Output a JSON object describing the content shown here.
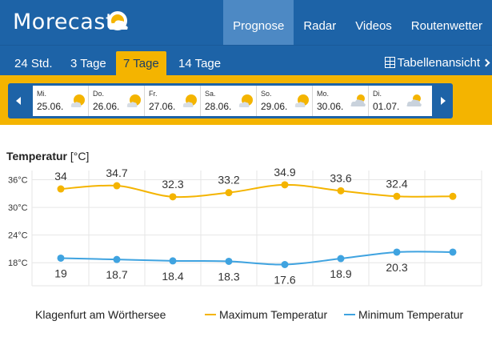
{
  "header": {
    "logo_text": "Morecast",
    "nav": [
      {
        "label": "Prognose",
        "active": true
      },
      {
        "label": "Radar",
        "active": false
      },
      {
        "label": "Videos",
        "active": false
      },
      {
        "label": "Routenwetter",
        "active": false
      }
    ]
  },
  "tabs": [
    {
      "label": "24 Std.",
      "active": false
    },
    {
      "label": "3 Tage",
      "active": false
    },
    {
      "label": "7 Tage",
      "active": true
    },
    {
      "label": "14 Tage",
      "active": false
    }
  ],
  "table_view_label": "Tabellenansicht",
  "days": [
    {
      "name": "Mi.",
      "date": "25.06.",
      "icon": "sun-cloud-icon"
    },
    {
      "name": "Do.",
      "date": "26.06.",
      "icon": "sun-cloud-icon"
    },
    {
      "name": "Fr.",
      "date": "27.06.",
      "icon": "sun-cloud-icon"
    },
    {
      "name": "Sa.",
      "date": "28.06.",
      "icon": "sun-cloud-icon"
    },
    {
      "name": "So.",
      "date": "29.06.",
      "icon": "sun-cloud-icon"
    },
    {
      "name": "Mo.",
      "date": "30.06.",
      "icon": "cloud-sun-icon"
    },
    {
      "name": "Di.",
      "date": "01.07.",
      "icon": "cloud-sun-icon"
    }
  ],
  "chart_title": "Temperatur",
  "chart_unit": "[°C]",
  "chart_data": {
    "type": "line",
    "title": "Temperatur [°C]",
    "y_ticks": [
      "36°C",
      "30°C",
      "24°C",
      "18°C"
    ],
    "y_tick_values": [
      36,
      30,
      24,
      18
    ],
    "ylim": [
      13,
      38
    ],
    "x": [
      0,
      1,
      2,
      3,
      4,
      5,
      6,
      7
    ],
    "series": [
      {
        "name": "Maximum Temperatur",
        "color": "#f4b400",
        "values": [
          34,
          34.7,
          32.3,
          33.2,
          34.9,
          33.6,
          32.4,
          32.4
        ],
        "labels": [
          "34",
          "34.7",
          "32.3",
          "33.2",
          "34.9",
          "33.6",
          "32.4",
          ""
        ]
      },
      {
        "name": "Minimum Temperatur",
        "color": "#3fa3e0",
        "values": [
          19,
          18.7,
          18.4,
          18.3,
          17.6,
          18.9,
          20.3,
          20.3
        ],
        "labels": [
          "19",
          "18.7",
          "18.4",
          "18.3",
          "17.6",
          "18.9",
          "20.3",
          ""
        ]
      }
    ],
    "legend": "bottom"
  },
  "location": "Klagenfurt am Wörthersee",
  "colors": {
    "brand_blue": "#1d63a7",
    "accent_yellow": "#f4b400",
    "min_blue": "#3fa3e0"
  }
}
